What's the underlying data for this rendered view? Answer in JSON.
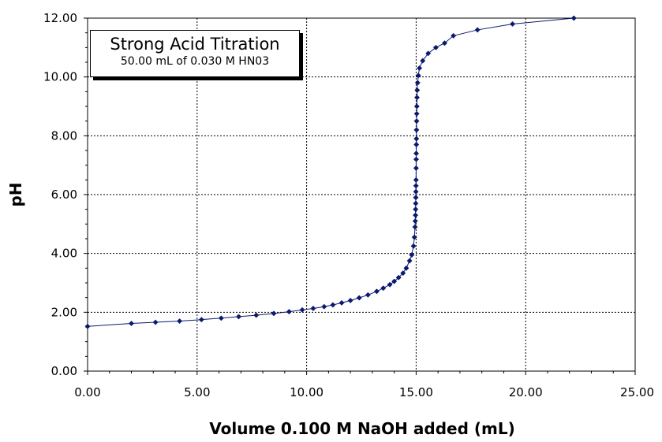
{
  "chart_data": {
    "type": "line",
    "title": "Strong Acid Titration",
    "subtitle": "50.00 mL of 0.030 M HN03",
    "xlabel": "Volume 0.100 M NaOH added (mL)",
    "ylabel": "pH",
    "xlim": [
      0,
      25
    ],
    "ylim": [
      0,
      12
    ],
    "grid": true,
    "x_ticks": [
      "0.00",
      "5.00",
      "10.00",
      "15.00",
      "20.00",
      "25.00"
    ],
    "y_ticks": [
      "0.00",
      "2.00",
      "4.00",
      "6.00",
      "8.00",
      "10.00",
      "12.00"
    ],
    "marker_color": "#0a1a6e",
    "line_color": "#0a1a6e",
    "series": [
      {
        "name": "pH",
        "x": [
          0.0,
          2.0,
          3.1,
          4.2,
          5.2,
          6.1,
          6.9,
          7.7,
          8.5,
          9.2,
          9.8,
          10.3,
          10.8,
          11.2,
          11.6,
          12.0,
          12.4,
          12.8,
          13.2,
          13.5,
          13.8,
          14.0,
          14.2,
          14.4,
          14.55,
          14.7,
          14.8,
          14.88,
          14.92,
          14.95,
          14.96,
          14.97,
          14.975,
          14.98,
          14.985,
          14.99,
          14.993,
          14.996,
          15.0,
          15.003,
          15.006,
          15.01,
          15.014,
          15.018,
          15.022,
          15.027,
          15.033,
          15.04,
          15.05,
          15.07,
          15.1,
          15.15,
          15.3,
          15.55,
          15.9,
          16.3,
          16.7,
          17.8,
          19.4,
          22.2
        ],
        "y": [
          1.52,
          1.62,
          1.66,
          1.7,
          1.75,
          1.8,
          1.85,
          1.9,
          1.96,
          2.02,
          2.08,
          2.13,
          2.19,
          2.25,
          2.32,
          2.4,
          2.49,
          2.59,
          2.71,
          2.82,
          2.94,
          3.05,
          3.18,
          3.33,
          3.5,
          3.75,
          3.95,
          4.25,
          4.55,
          4.9,
          5.1,
          5.3,
          5.5,
          5.7,
          5.9,
          6.1,
          6.3,
          6.5,
          6.9,
          7.2,
          7.4,
          7.7,
          7.9,
          8.2,
          8.5,
          8.75,
          9.0,
          9.3,
          9.55,
          9.8,
          10.05,
          10.3,
          10.55,
          10.8,
          11.0,
          11.15,
          11.4,
          11.6,
          11.8,
          12.0
        ]
      }
    ]
  }
}
